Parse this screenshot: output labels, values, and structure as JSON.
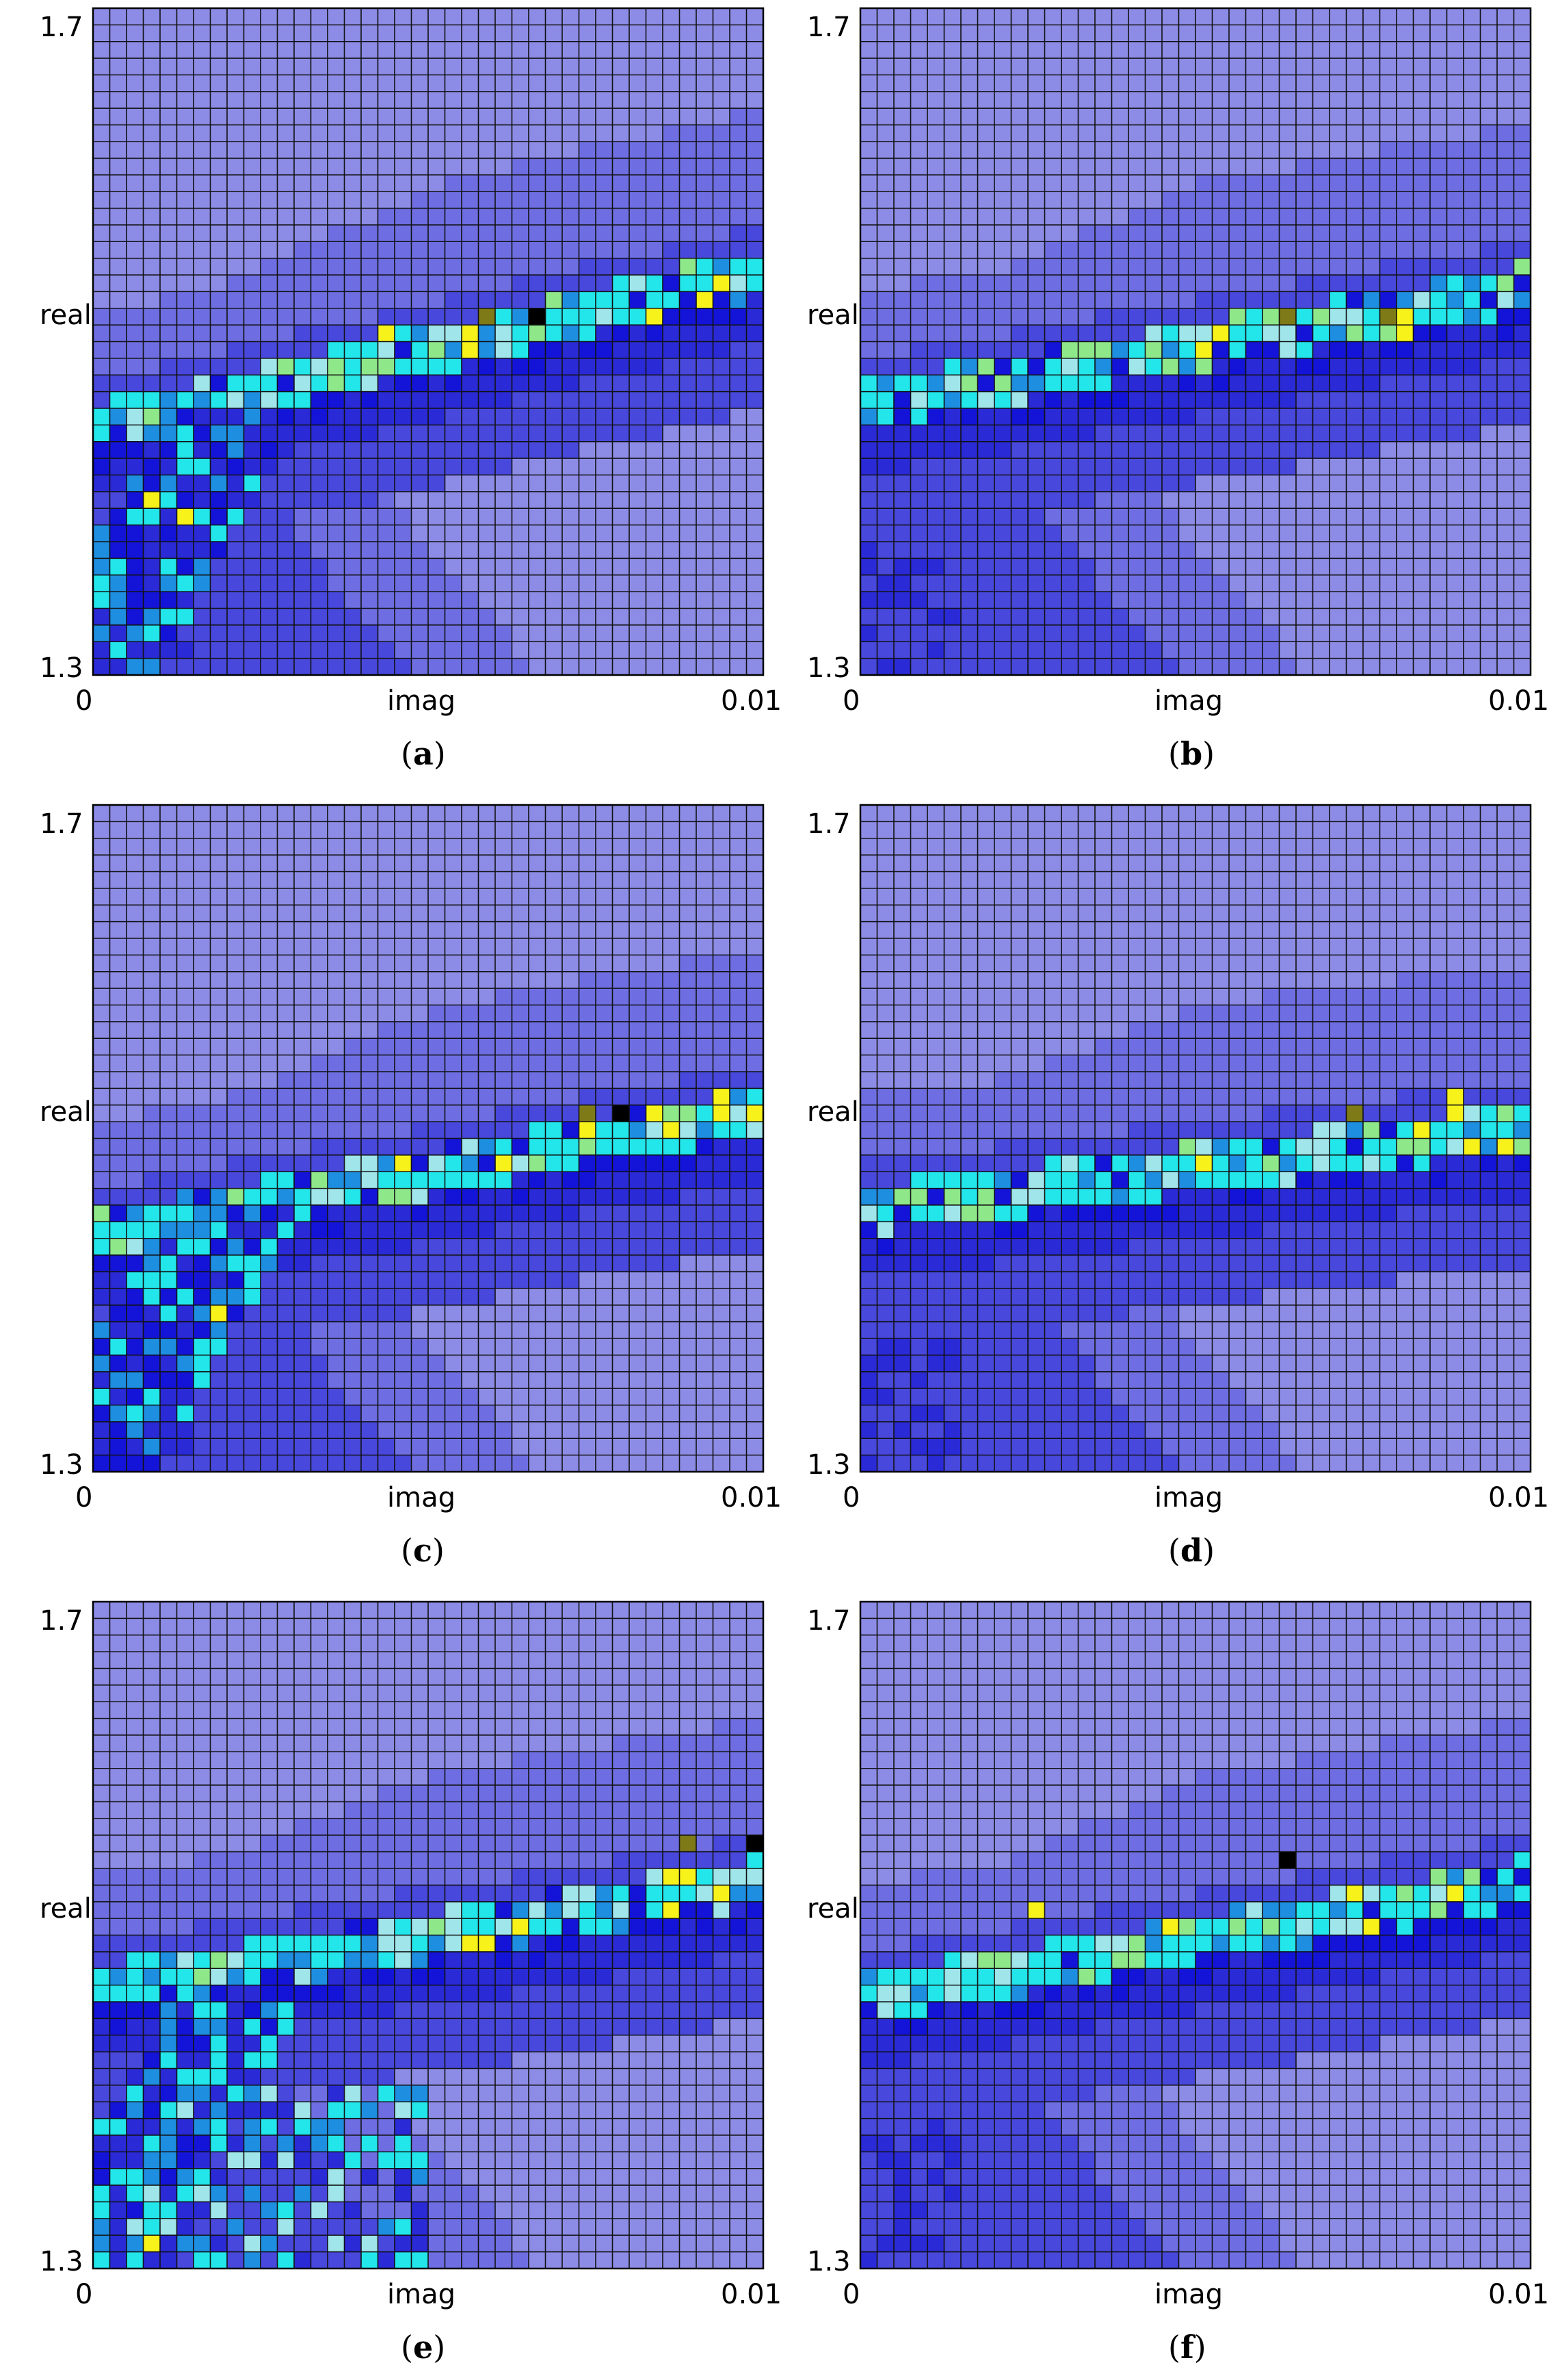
{
  "colors": {
    "background": "#8e8ee8",
    "gridline": "#111111",
    "ridge_dark": "#2e2ed8",
    "levels": [
      "#8c8ce6",
      "#6e6ee2",
      "#4848dc",
      "#2a2ad6",
      "#1414d8",
      "#1e8ee0",
      "#22e6ea",
      "#9fe5ea",
      "#8ee88a",
      "#f6f21a",
      "#7e7a18",
      "#000000"
    ]
  },
  "panels": [
    {
      "caption_letter": "a",
      "caption_open": "(",
      "caption_close": ")",
      "x_min_label": "0",
      "x_max_label": "0.01",
      "x_label": "imag",
      "y_min_label": "1.3",
      "y_max_label": "1.7",
      "y_label": "real"
    },
    {
      "caption_letter": "b",
      "caption_open": "(",
      "caption_close": ")",
      "x_min_label": "0",
      "x_max_label": "0.01",
      "x_label": "imag",
      "y_min_label": "1.3",
      "y_max_label": "1.7",
      "y_label": "real"
    },
    {
      "caption_letter": "c",
      "caption_open": "(",
      "caption_close": ")",
      "x_min_label": "0",
      "x_max_label": "0.01",
      "x_label": "imag",
      "y_min_label": "1.3",
      "y_max_label": "1.7",
      "y_label": "real"
    },
    {
      "caption_letter": "d",
      "caption_open": "(",
      "caption_close": ")",
      "x_min_label": "0",
      "x_max_label": "0.01",
      "x_label": "imag",
      "y_min_label": "1.3",
      "y_max_label": "1.7",
      "y_label": "real"
    },
    {
      "caption_letter": "e",
      "caption_open": "(",
      "caption_close": ")",
      "x_min_label": "0",
      "x_max_label": "0.01",
      "x_label": "imag",
      "y_min_label": "1.3",
      "y_max_label": "1.7",
      "y_label": "real"
    },
    {
      "caption_letter": "f",
      "caption_open": "(",
      "caption_close": ")",
      "x_min_label": "0",
      "x_max_label": "0.01",
      "x_label": "imag",
      "y_min_label": "1.3",
      "y_max_label": "1.7",
      "y_label": "real"
    }
  ],
  "chart_data": [
    {
      "type": "heatmap",
      "panel": "a",
      "xlabel": "imag",
      "ylabel": "real",
      "xlim": [
        0,
        0.01
      ],
      "ylim": [
        1.3,
        1.7
      ],
      "grid": true,
      "grid_size": [
        40,
        40
      ],
      "ridge": {
        "x": [
          0.0,
          0.01
        ],
        "real": [
          1.461,
          1.555
        ]
      },
      "lower_branch": true,
      "hotspots": [
        {
          "x": 0.00075,
          "real": 1.408,
          "level": 9
        },
        {
          "x": 0.00125,
          "real": 1.395,
          "level": 9
        },
        {
          "x": 0.00675,
          "real": 1.52,
          "level": 11
        },
        {
          "x": 0.00575,
          "real": 1.52,
          "level": 10
        },
        {
          "x": 0.00425,
          "real": 1.51,
          "level": 9
        }
      ]
    },
    {
      "type": "heatmap",
      "panel": "b",
      "xlabel": "imag",
      "ylabel": "real",
      "xlim": [
        0,
        0.01
      ],
      "ylim": [
        1.3,
        1.7
      ],
      "grid": true,
      "grid_size": [
        40,
        40
      ],
      "ridge": {
        "x": [
          0.0,
          0.01
        ],
        "real": [
          1.475,
          1.545
        ]
      },
      "lower_branch": false,
      "hotspots": [
        {
          "x": 0.00625,
          "real": 1.515,
          "level": 10
        },
        {
          "x": 0.00775,
          "real": 1.515,
          "level": 10
        },
        {
          "x": 0.00525,
          "real": 1.51,
          "level": 9
        }
      ]
    },
    {
      "type": "heatmap",
      "panel": "c",
      "xlabel": "imag",
      "ylabel": "real",
      "xlim": [
        0,
        0.01
      ],
      "ylim": [
        1.3,
        1.7
      ],
      "grid": true,
      "grid_size": [
        40,
        40
      ],
      "ridge": {
        "x": [
          0.0,
          0.01
        ],
        "real": [
          1.455,
          1.53
        ]
      },
      "lower_branch": true,
      "hotspots": [
        {
          "x": 0.00775,
          "real": 1.52,
          "level": 11
        },
        {
          "x": 0.00725,
          "real": 1.515,
          "level": 10
        },
        {
          "x": 0.00175,
          "real": 1.4,
          "level": 9
        }
      ]
    },
    {
      "type": "heatmap",
      "panel": "d",
      "xlabel": "imag",
      "ylabel": "real",
      "xlim": [
        0,
        0.01
      ],
      "ylim": [
        1.3,
        1.7
      ],
      "grid": true,
      "grid_size": [
        40,
        40
      ],
      "ridge": {
        "x": [
          0.0,
          0.01
        ],
        "real": [
          1.47,
          1.52
        ]
      },
      "lower_branch": false,
      "hotspots": [
        {
          "x": 0.00725,
          "real": 1.515,
          "level": 10
        },
        {
          "x": 0.00875,
          "real": 1.525,
          "level": 9
        }
      ]
    },
    {
      "type": "heatmap",
      "panel": "e",
      "xlabel": "imag",
      "ylabel": "real",
      "xlim": [
        0,
        0.01
      ],
      "ylim": [
        1.3,
        1.7
      ],
      "grid": true,
      "grid_size": [
        40,
        40
      ],
      "ridge": {
        "x": [
          0.0,
          0.01
        ],
        "real": [
          1.48,
          1.545
        ]
      },
      "lower_branch": true,
      "hotspots": [
        {
          "x": 0.00975,
          "real": 1.555,
          "level": 11
        },
        {
          "x": 0.00875,
          "real": 1.55,
          "level": 10
        },
        {
          "x": 0.00925,
          "real": 1.525,
          "level": 9
        },
        {
          "x": 0.00075,
          "real": 1.315,
          "level": 9
        }
      ]
    },
    {
      "type": "heatmap",
      "panel": "f",
      "xlabel": "imag",
      "ylabel": "real",
      "xlim": [
        0,
        0.01
      ],
      "ylim": [
        1.3,
        1.7
      ],
      "grid": true,
      "grid_size": [
        40,
        40
      ],
      "ridge": {
        "x": [
          0.0,
          0.01
        ],
        "real": [
          1.475,
          1.545
        ]
      },
      "lower_branch": false,
      "hotspots": [
        {
          "x": 0.00625,
          "real": 1.54,
          "level": 11
        },
        {
          "x": 0.00275,
          "real": 1.515,
          "level": 9
        }
      ]
    }
  ]
}
